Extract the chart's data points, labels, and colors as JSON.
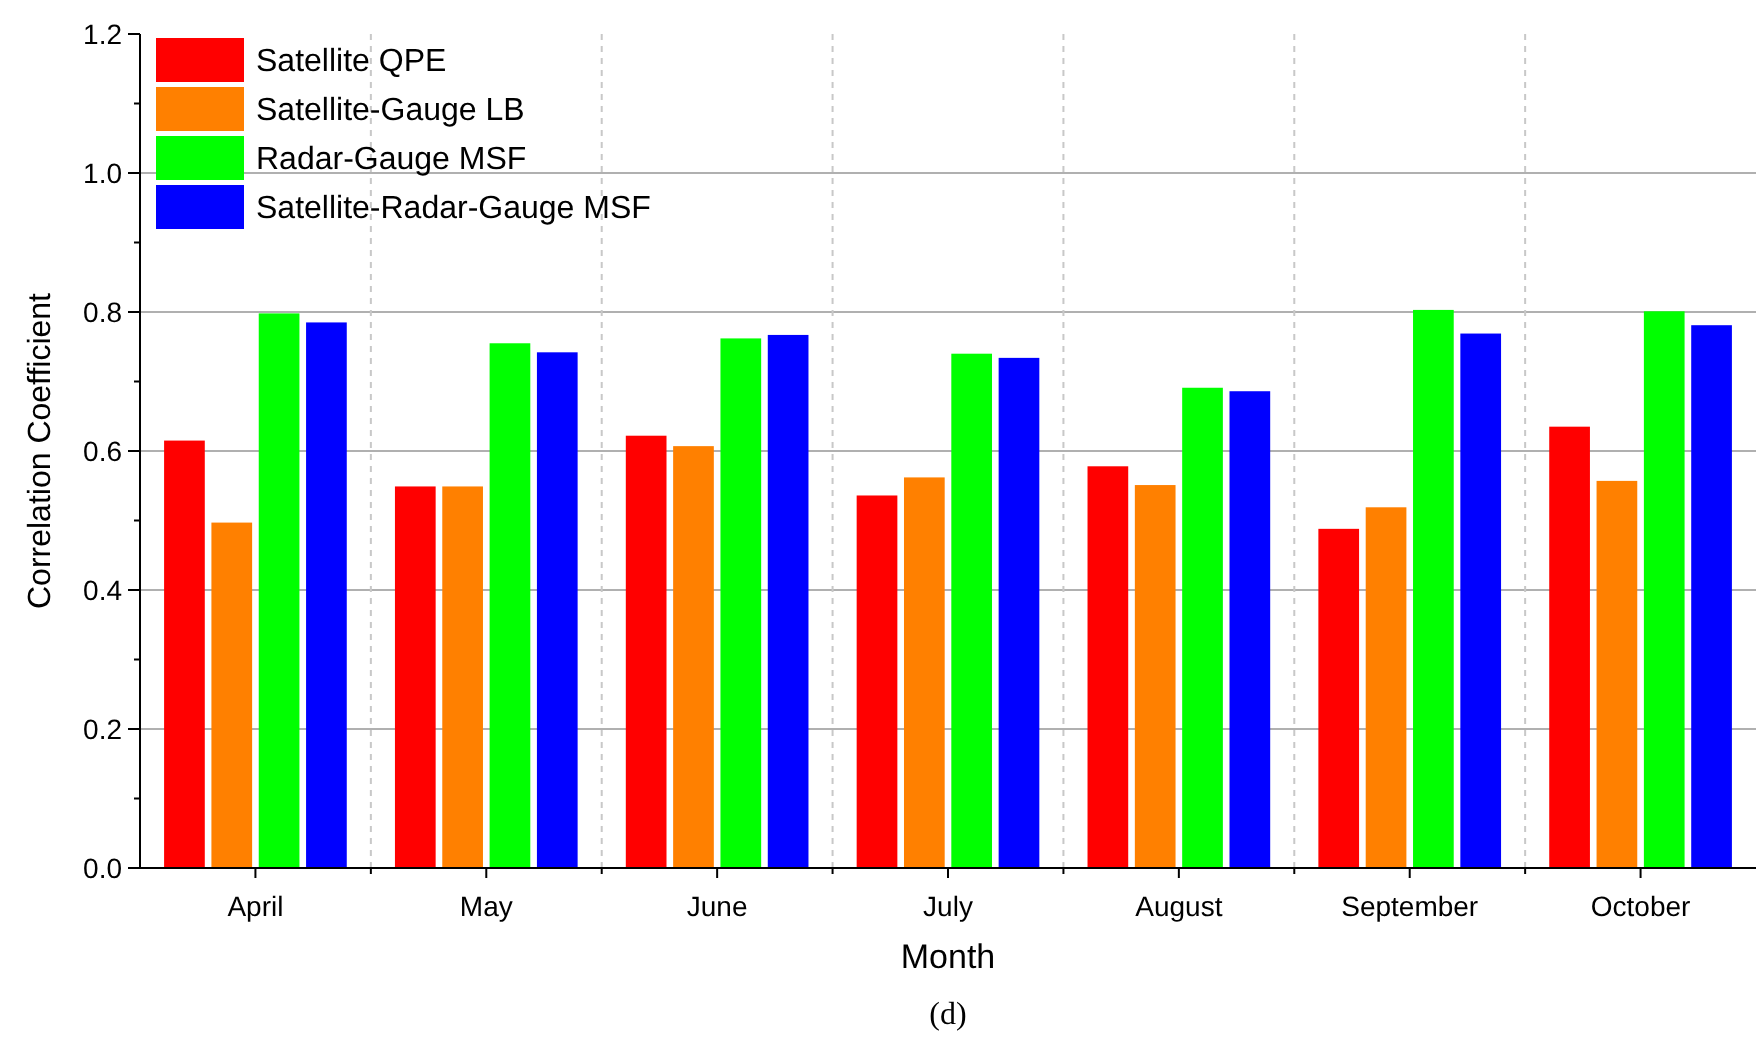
{
  "chart_data": {
    "type": "bar",
    "xlabel": "Month",
    "ylabel": "Correlation Coefficient",
    "annotations": [
      "(d)"
    ],
    "categories": [
      "April",
      "May",
      "June",
      "July",
      "August",
      "September",
      "October"
    ],
    "series": [
      {
        "name": "Satellite QPE",
        "color": "#ff0000",
        "values": [
          0.615,
          0.549,
          0.622,
          0.536,
          0.578,
          0.488,
          0.635
        ]
      },
      {
        "name": "Satellite-Gauge LB",
        "color": "#ff8000",
        "values": [
          0.497,
          0.549,
          0.607,
          0.562,
          0.551,
          0.519,
          0.557
        ]
      },
      {
        "name": "Radar-Gauge MSF",
        "color": "#00ff00",
        "values": [
          0.798,
          0.755,
          0.762,
          0.74,
          0.691,
          0.803,
          0.801
        ]
      },
      {
        "name": "Satellite-Radar-Gauge MSF",
        "color": "#0000ff",
        "values": [
          0.785,
          0.742,
          0.767,
          0.734,
          0.686,
          0.769,
          0.781
        ]
      }
    ],
    "ylim": [
      0,
      1.2
    ],
    "yticks": [
      {
        "value": 0,
        "label": "0.0"
      },
      {
        "value": 0.1,
        "label": null
      },
      {
        "value": 0.2,
        "label": "0.2"
      },
      {
        "value": 0.3,
        "label": null
      },
      {
        "value": 0.4,
        "label": "0.4"
      },
      {
        "value": 0.5,
        "label": null
      },
      {
        "value": 0.6,
        "label": "0.6"
      },
      {
        "value": 0.7,
        "label": null
      },
      {
        "value": 0.8,
        "label": "0.8"
      },
      {
        "value": 0.9,
        "label": null
      },
      {
        "value": 1,
        "label": "1.0"
      },
      {
        "value": 1.1,
        "label": null
      },
      {
        "value": 1.2,
        "label": "1.2"
      }
    ],
    "grid": true,
    "legend": "top left"
  }
}
